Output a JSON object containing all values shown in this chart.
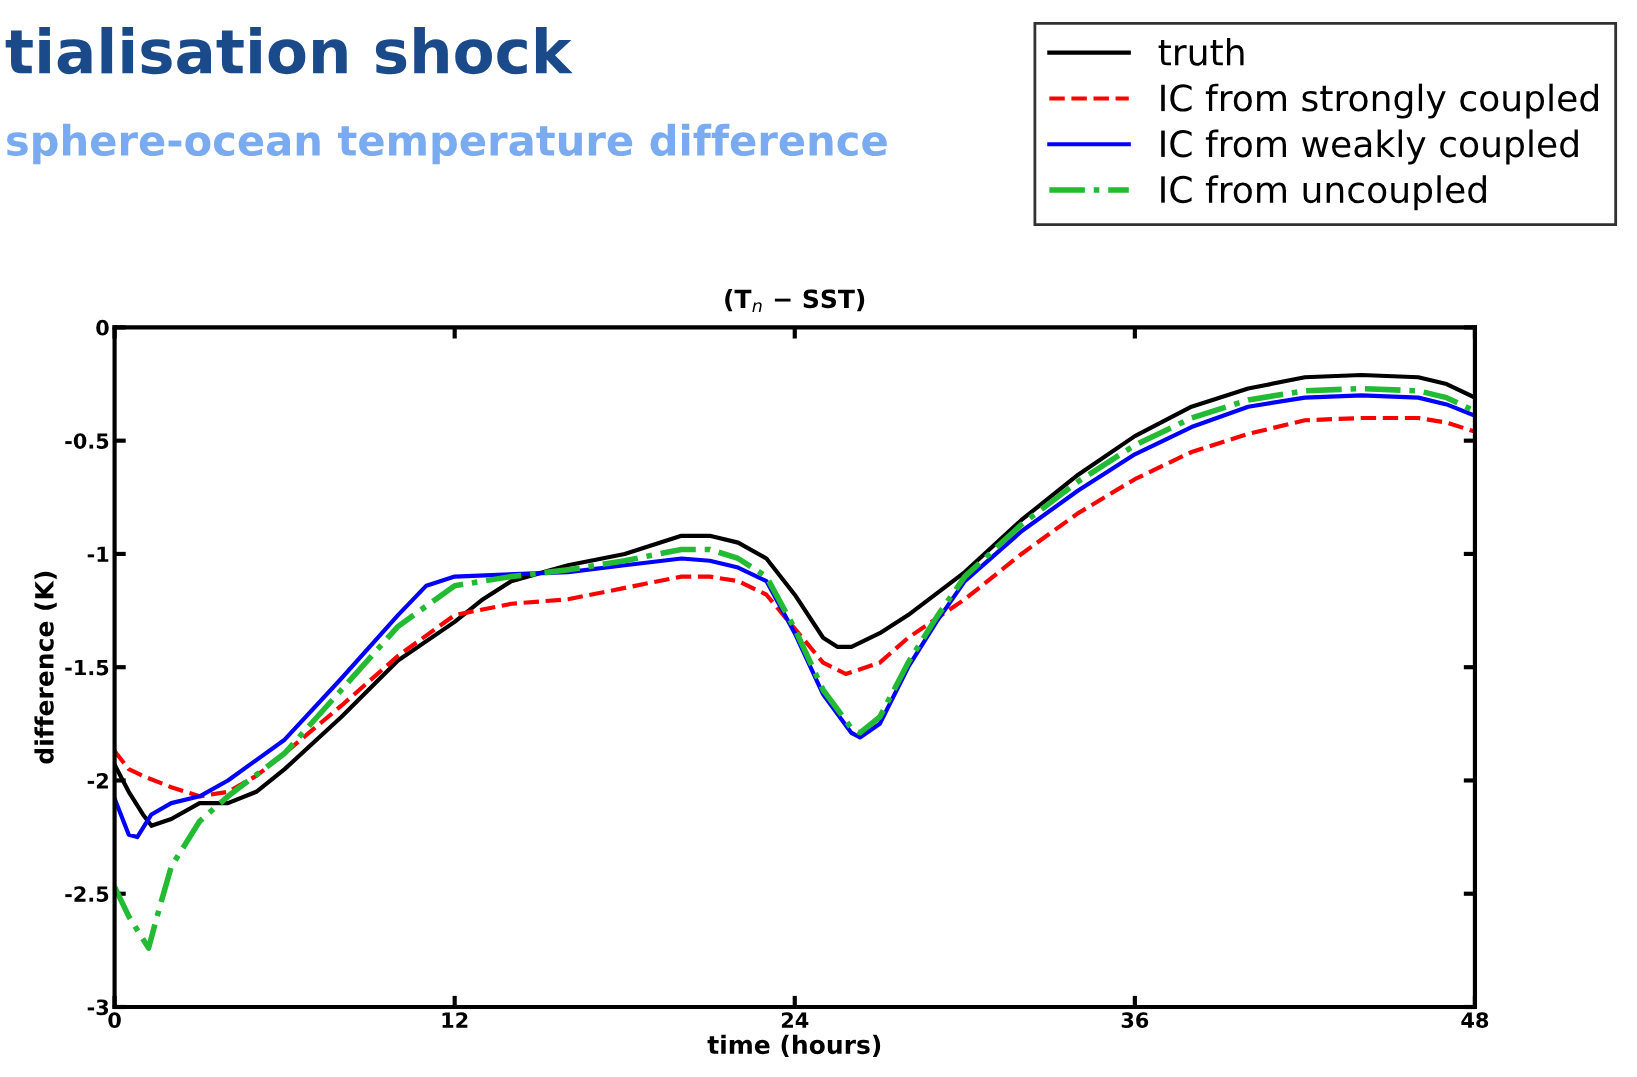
{
  "chart_data": {
    "type": "line",
    "title": "(T$_{n}$ − SST)",
    "annotations": [
      "tialisation shock",
      "sphere-ocean temperature difference"
    ],
    "xlabel": "time (hours)",
    "ylabel": "difference (K)",
    "xlim": [
      0,
      48
    ],
    "ylim": [
      -3,
      0
    ],
    "xticks": [
      0,
      12,
      24,
      36,
      48
    ],
    "yticks": [
      -3,
      -2.5,
      -2,
      -1.5,
      -1,
      -0.5,
      0
    ],
    "grid": false,
    "legend": "top right",
    "marker": "none",
    "series": [
      {
        "name": "truth",
        "color": "#000000",
        "line_style": "solid",
        "x": [
          0,
          0.5,
          1,
          1.3,
          2,
          3,
          4,
          5,
          6,
          8,
          10,
          12,
          13,
          14,
          16,
          18,
          20,
          21,
          22,
          23,
          24,
          25,
          25.5,
          26,
          27,
          28,
          30,
          32,
          34,
          36,
          38,
          40,
          42,
          44,
          46,
          47,
          48
        ],
        "values": [
          -1.93,
          -2.05,
          -2.15,
          -2.2,
          -2.17,
          -2.1,
          -2.1,
          -2.05,
          -1.95,
          -1.72,
          -1.47,
          -1.3,
          -1.2,
          -1.12,
          -1.05,
          -1.0,
          -0.92,
          -0.92,
          -0.95,
          -1.02,
          -1.18,
          -1.37,
          -1.41,
          -1.41,
          -1.35,
          -1.27,
          -1.08,
          -0.85,
          -0.65,
          -0.48,
          -0.35,
          -0.27,
          -0.22,
          -0.21,
          -0.22,
          -0.25,
          -0.31
        ]
      },
      {
        "name": "IC from strongly coupled",
        "color": "#ff0000",
        "line_style": "dashed",
        "x": [
          0,
          0.5,
          1,
          2,
          3,
          4,
          5,
          6,
          8,
          10,
          12,
          14,
          16,
          18,
          20,
          21,
          22,
          23,
          24,
          25,
          25.8,
          27,
          28,
          30,
          32,
          34,
          36,
          38,
          40,
          42,
          44,
          46,
          47,
          48
        ],
        "values": [
          -1.87,
          -1.95,
          -1.98,
          -2.03,
          -2.07,
          -2.05,
          -1.98,
          -1.88,
          -1.67,
          -1.45,
          -1.27,
          -1.22,
          -1.2,
          -1.15,
          -1.1,
          -1.1,
          -1.12,
          -1.18,
          -1.33,
          -1.48,
          -1.53,
          -1.48,
          -1.37,
          -1.2,
          -1.0,
          -0.82,
          -0.67,
          -0.55,
          -0.47,
          -0.41,
          -0.4,
          -0.4,
          -0.42,
          -0.46
        ]
      },
      {
        "name": "IC from weakly coupled",
        "color": "#0000ff",
        "line_style": "solid",
        "x": [
          0,
          0.5,
          0.8,
          1.3,
          2,
          3,
          4,
          6,
          8,
          10,
          11,
          12,
          16,
          18,
          20,
          21,
          22,
          23,
          24,
          25,
          26,
          26.3,
          27,
          28,
          29,
          30,
          32,
          34,
          36,
          38,
          40,
          42,
          44,
          46,
          47,
          48
        ],
        "values": [
          -2.08,
          -2.24,
          -2.25,
          -2.15,
          -2.1,
          -2.07,
          -2.0,
          -1.82,
          -1.55,
          -1.27,
          -1.14,
          -1.1,
          -1.08,
          -1.05,
          -1.02,
          -1.03,
          -1.06,
          -1.12,
          -1.35,
          -1.62,
          -1.79,
          -1.81,
          -1.75,
          -1.5,
          -1.3,
          -1.12,
          -0.9,
          -0.72,
          -0.56,
          -0.44,
          -0.35,
          -0.31,
          -0.3,
          -0.31,
          -0.34,
          -0.39
        ]
      },
      {
        "name": "IC from uncoupled",
        "color": "#22bb33",
        "line_style": "dashdot",
        "x": [
          0,
          0.5,
          1.2,
          1.5,
          2,
          3,
          4,
          6,
          8,
          10,
          12,
          14,
          16,
          18,
          20,
          21,
          22,
          23,
          24,
          25,
          26,
          26.3,
          27,
          28,
          29,
          30,
          32,
          34,
          36,
          38,
          40,
          42,
          44,
          46,
          47,
          48
        ],
        "values": [
          -2.47,
          -2.6,
          -2.74,
          -2.6,
          -2.38,
          -2.18,
          -2.07,
          -1.88,
          -1.6,
          -1.32,
          -1.14,
          -1.1,
          -1.07,
          -1.03,
          -0.98,
          -0.98,
          -1.02,
          -1.1,
          -1.33,
          -1.6,
          -1.77,
          -1.79,
          -1.72,
          -1.48,
          -1.28,
          -1.1,
          -0.87,
          -0.68,
          -0.52,
          -0.4,
          -0.32,
          -0.28,
          -0.27,
          -0.28,
          -0.31,
          -0.37
        ]
      }
    ]
  }
}
